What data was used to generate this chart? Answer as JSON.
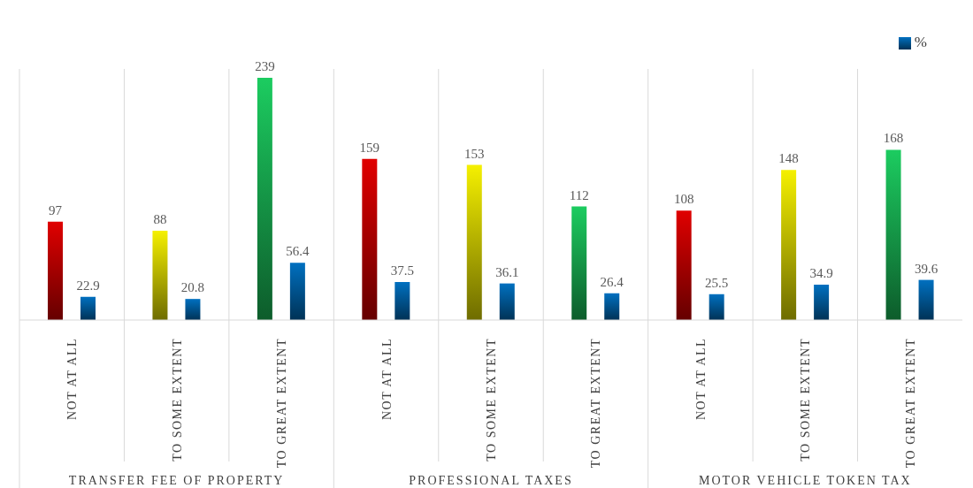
{
  "chart_data": {
    "type": "bar",
    "categories": [
      "NOT AT ALL",
      "TO SOME EXTENT",
      "TO GREAT EXTENT",
      "NOT AT ALL",
      "TO SOME EXTENT",
      "TO GREAT EXTENT",
      "NOT AT ALL",
      "TO SOME EXTENT",
      "TO GREAT EXTENT"
    ],
    "series": [
      {
        "colors": [
          "#e00000",
          "#f5f000",
          "#1ccc60",
          "#e00000",
          "#f5f000",
          "#1ccc60",
          "#e00000",
          "#f5f000",
          "#1ccc60"
        ],
        "values": [
          97,
          88,
          239,
          159,
          153,
          112,
          108,
          148,
          168
        ]
      },
      {
        "name": "%",
        "color": "#0070c0",
        "values": [
          22.9,
          20.8,
          56.4,
          37.5,
          36.1,
          26.4,
          25.5,
          34.9,
          39.6
        ]
      }
    ],
    "data_labels": true,
    "legend": "top right",
    "grid": "x",
    "annotations": [
      "TRANSFER FEE OF PROPERTY",
      "PROFESSIONAL TAXES",
      "MOTOR VEHICLE TOKEN TAX"
    ]
  }
}
